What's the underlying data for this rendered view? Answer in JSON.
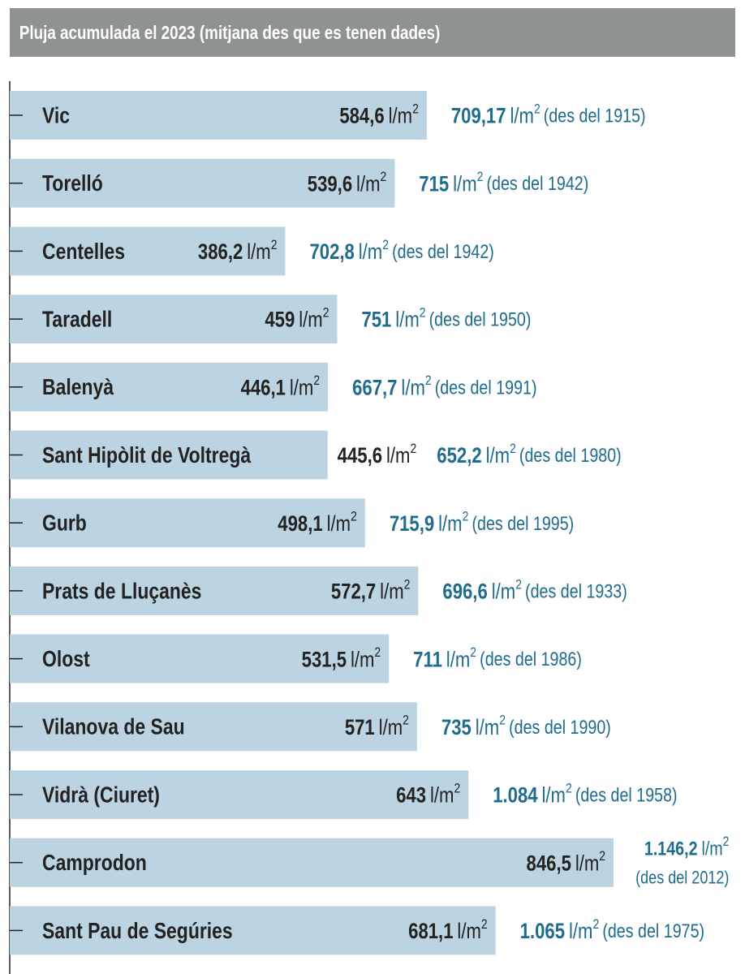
{
  "chart_data": {
    "type": "bar",
    "title": "Pluja acumulada el 2023 (mitjana des que es tenen dades)",
    "categories": [
      "Vic",
      "Torelló",
      "Centelles",
      "Taradell",
      "Balenyà",
      "Sant Hipòlit de Voltregà",
      "Gurb",
      "Prats de Lluçanès",
      "Olost",
      "Vilanova de Sau",
      "Vidrà (Ciuret)",
      "Camprodon",
      "Sant Pau de Segúries"
    ],
    "values": [
      584.6,
      539.6,
      386.2,
      459,
      446.1,
      445.6,
      498.1,
      572.7,
      531.5,
      571,
      643,
      846.5,
      681.1
    ],
    "value_labels": [
      "584,6",
      "539,6",
      "386,2",
      "459",
      "446,1",
      "445,6",
      "498,1",
      "572,7",
      "531,5",
      "571",
      "643",
      "846,5",
      "681,1"
    ],
    "averages": [
      709.17,
      715,
      702.8,
      751,
      667.7,
      652.2,
      715.9,
      696.6,
      711,
      735,
      1084,
      1146.2,
      1065
    ],
    "average_labels": [
      "709,17",
      "715",
      "702,8",
      "751",
      "667,7",
      "652,2",
      "715,9",
      "696,6",
      "711",
      "735",
      "1.084",
      "1.146,2",
      "1.065"
    ],
    "since": [
      "(des del 1915)",
      "(des del 1942)",
      "(des del 1942)",
      "(des del 1950)",
      "(des del 1991)",
      "(des del 1980)",
      "(des del 1995)",
      "(des del 1933)",
      "(des del 1986)",
      "(des del 1990)",
      "(des del 1958)",
      "(des del 2012)",
      "(des del 1975)"
    ],
    "unit": "l/m",
    "unit_power": "2",
    "color": "#bcd4e1",
    "average_color": "#1f6c8e"
  }
}
